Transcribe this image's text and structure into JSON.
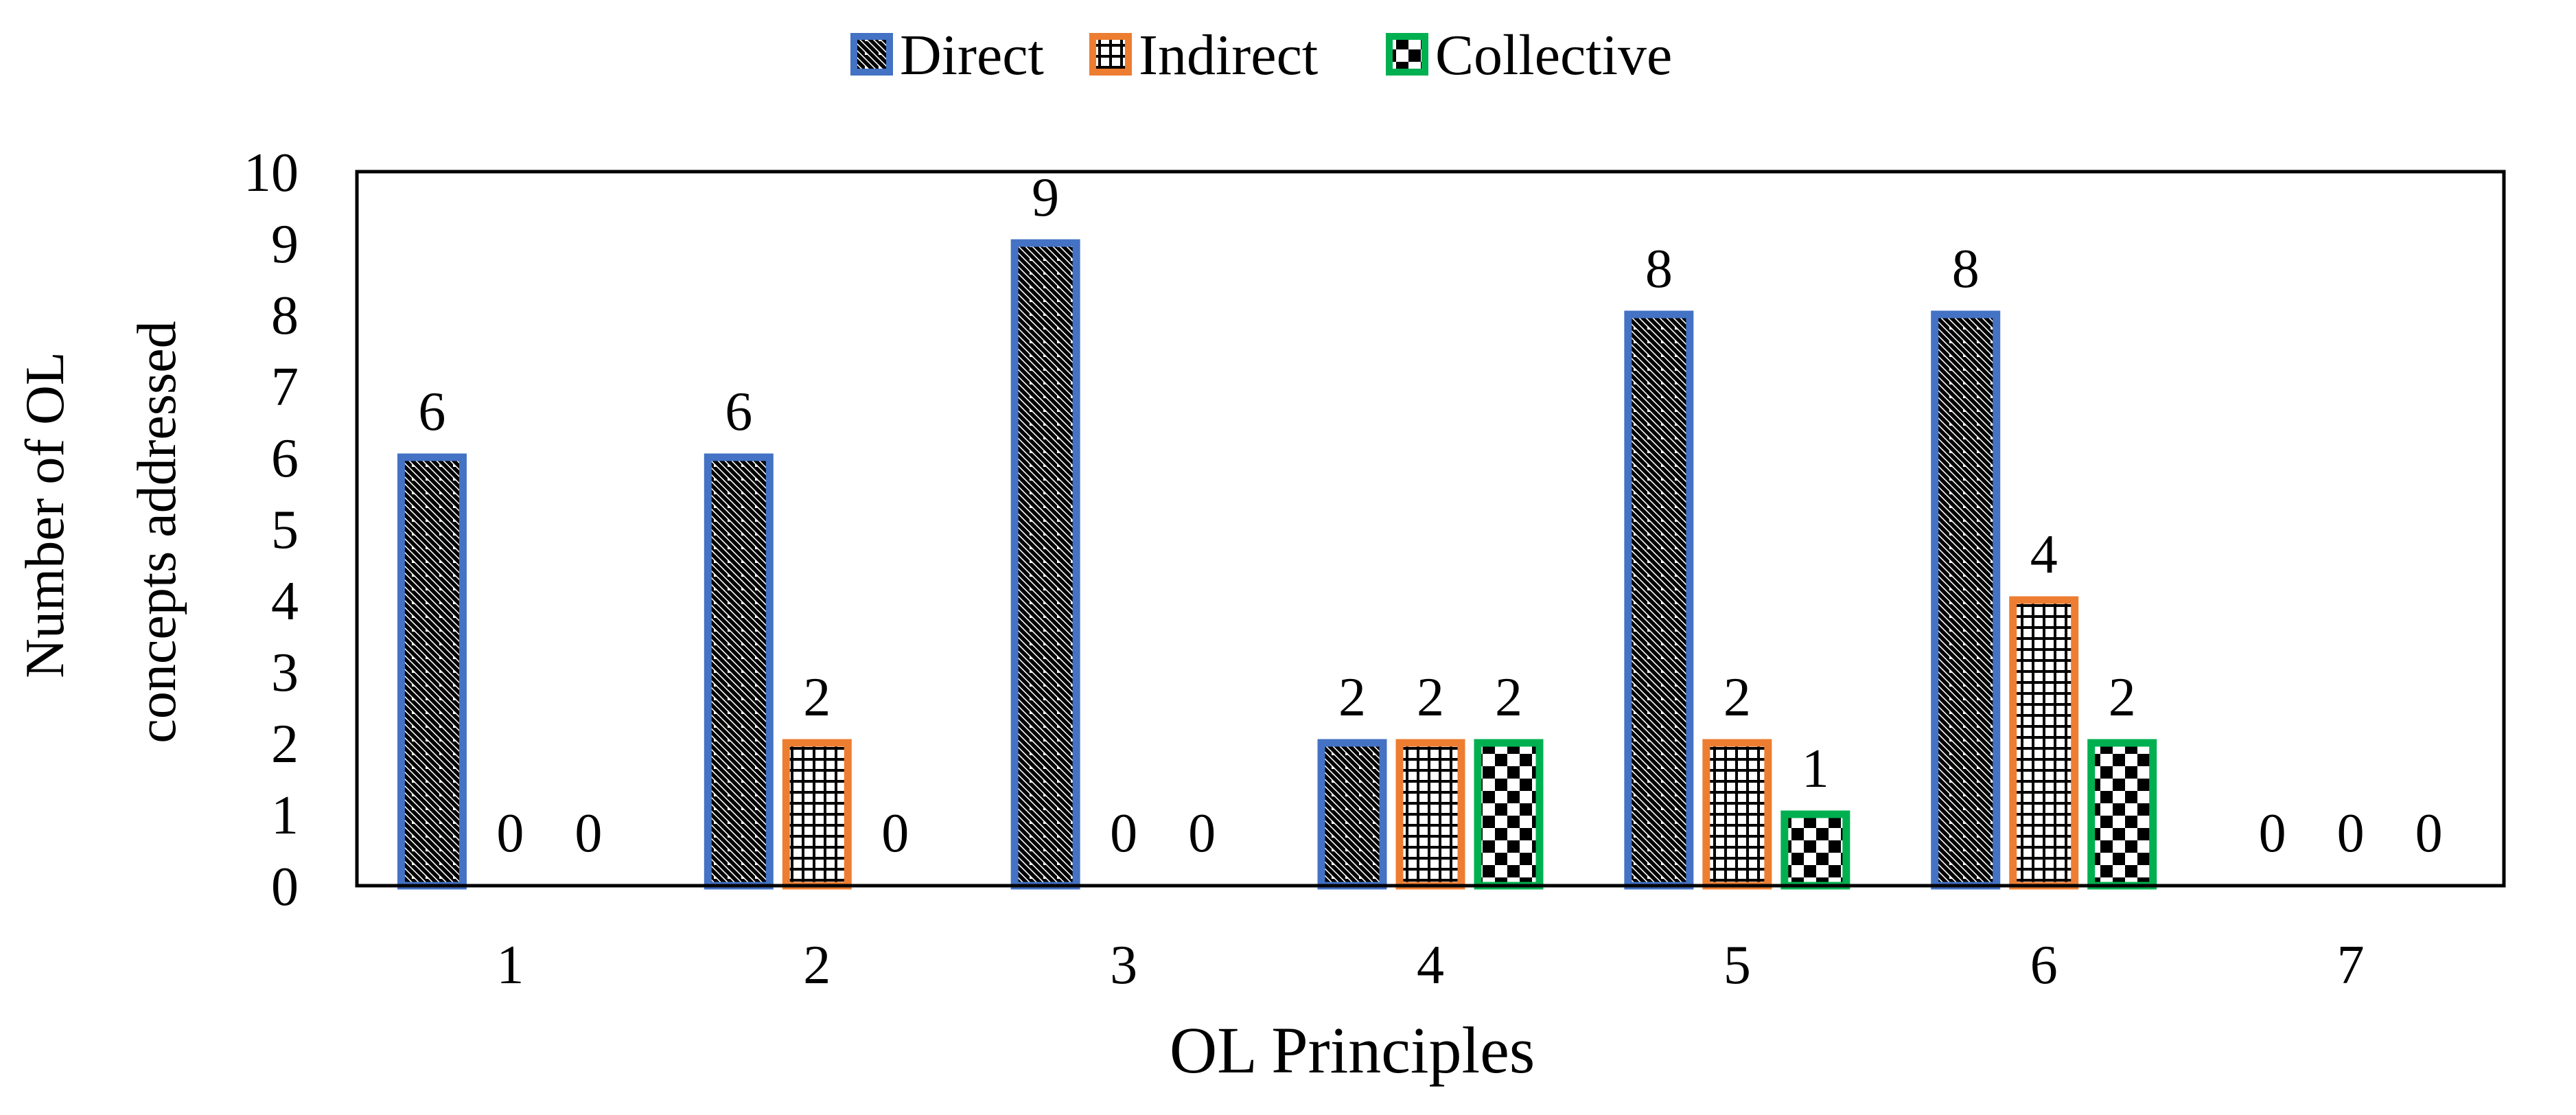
{
  "chart_data": {
    "type": "bar",
    "title": "",
    "xlabel": "OL Principles",
    "ylabel_lines": [
      "Number of OL",
      "concepts addressed"
    ],
    "categories": [
      "1",
      "2",
      "3",
      "4",
      "5",
      "6",
      "7"
    ],
    "series": [
      {
        "name": "Direct",
        "values": [
          6,
          6,
          9,
          2,
          8,
          8,
          0
        ],
        "color": "#4472C4",
        "pattern": "diagonal-stripes"
      },
      {
        "name": "Indirect",
        "values": [
          0,
          2,
          0,
          2,
          2,
          4,
          0
        ],
        "color": "#ED7D31",
        "pattern": "grid"
      },
      {
        "name": "Collective",
        "values": [
          0,
          0,
          0,
          2,
          1,
          2,
          0
        ],
        "color": "#00B050",
        "pattern": "checkerboard"
      }
    ],
    "ylim": [
      0,
      10
    ],
    "yticks": [
      0,
      1,
      2,
      3,
      4,
      5,
      6,
      7,
      8,
      9,
      10
    ],
    "grid": false,
    "legend_position": "top-center",
    "data_labels": true
  }
}
